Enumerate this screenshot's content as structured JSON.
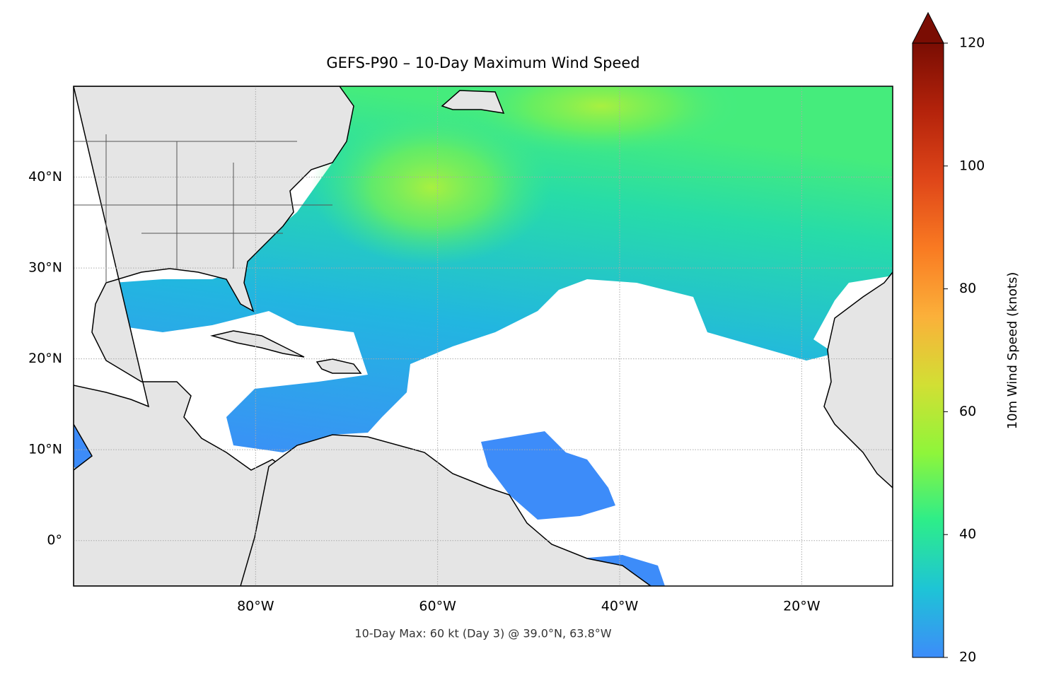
{
  "chart_data": {
    "type": "map",
    "title": "GEFS-P90 – 10-Day Maximum Wind Speed",
    "annotation": "10-Day Max: 60 kt (Day 3) @ 39.0°N, 63.8°W",
    "xlim": [
      -100,
      -10
    ],
    "ylim": [
      -5,
      50
    ],
    "xticks": [
      {
        "value": -80,
        "label": "80°W"
      },
      {
        "value": -60,
        "label": "60°W"
      },
      {
        "value": -40,
        "label": "40°W"
      },
      {
        "value": -20,
        "label": "20°W"
      }
    ],
    "yticks": [
      {
        "value": 0,
        "label": "0°"
      },
      {
        "value": 10,
        "label": "10°N"
      },
      {
        "value": 20,
        "label": "20°N"
      },
      {
        "value": 30,
        "label": "30°N"
      },
      {
        "value": 40,
        "label": "40°N"
      }
    ],
    "grid": true,
    "colorbar": {
      "label": "10m Wind Speed (knots)",
      "lim": [
        20,
        120
      ],
      "ticks": [
        20,
        40,
        60,
        80,
        100,
        120
      ],
      "colors": [
        "#3d8cf9",
        "#1ec4d6",
        "#2ded8a",
        "#8ff53a",
        "#d2df34",
        "#fbb03a",
        "#f97a22",
        "#df4619",
        "#b4230b",
        "#7a0d03"
      ]
    }
  }
}
